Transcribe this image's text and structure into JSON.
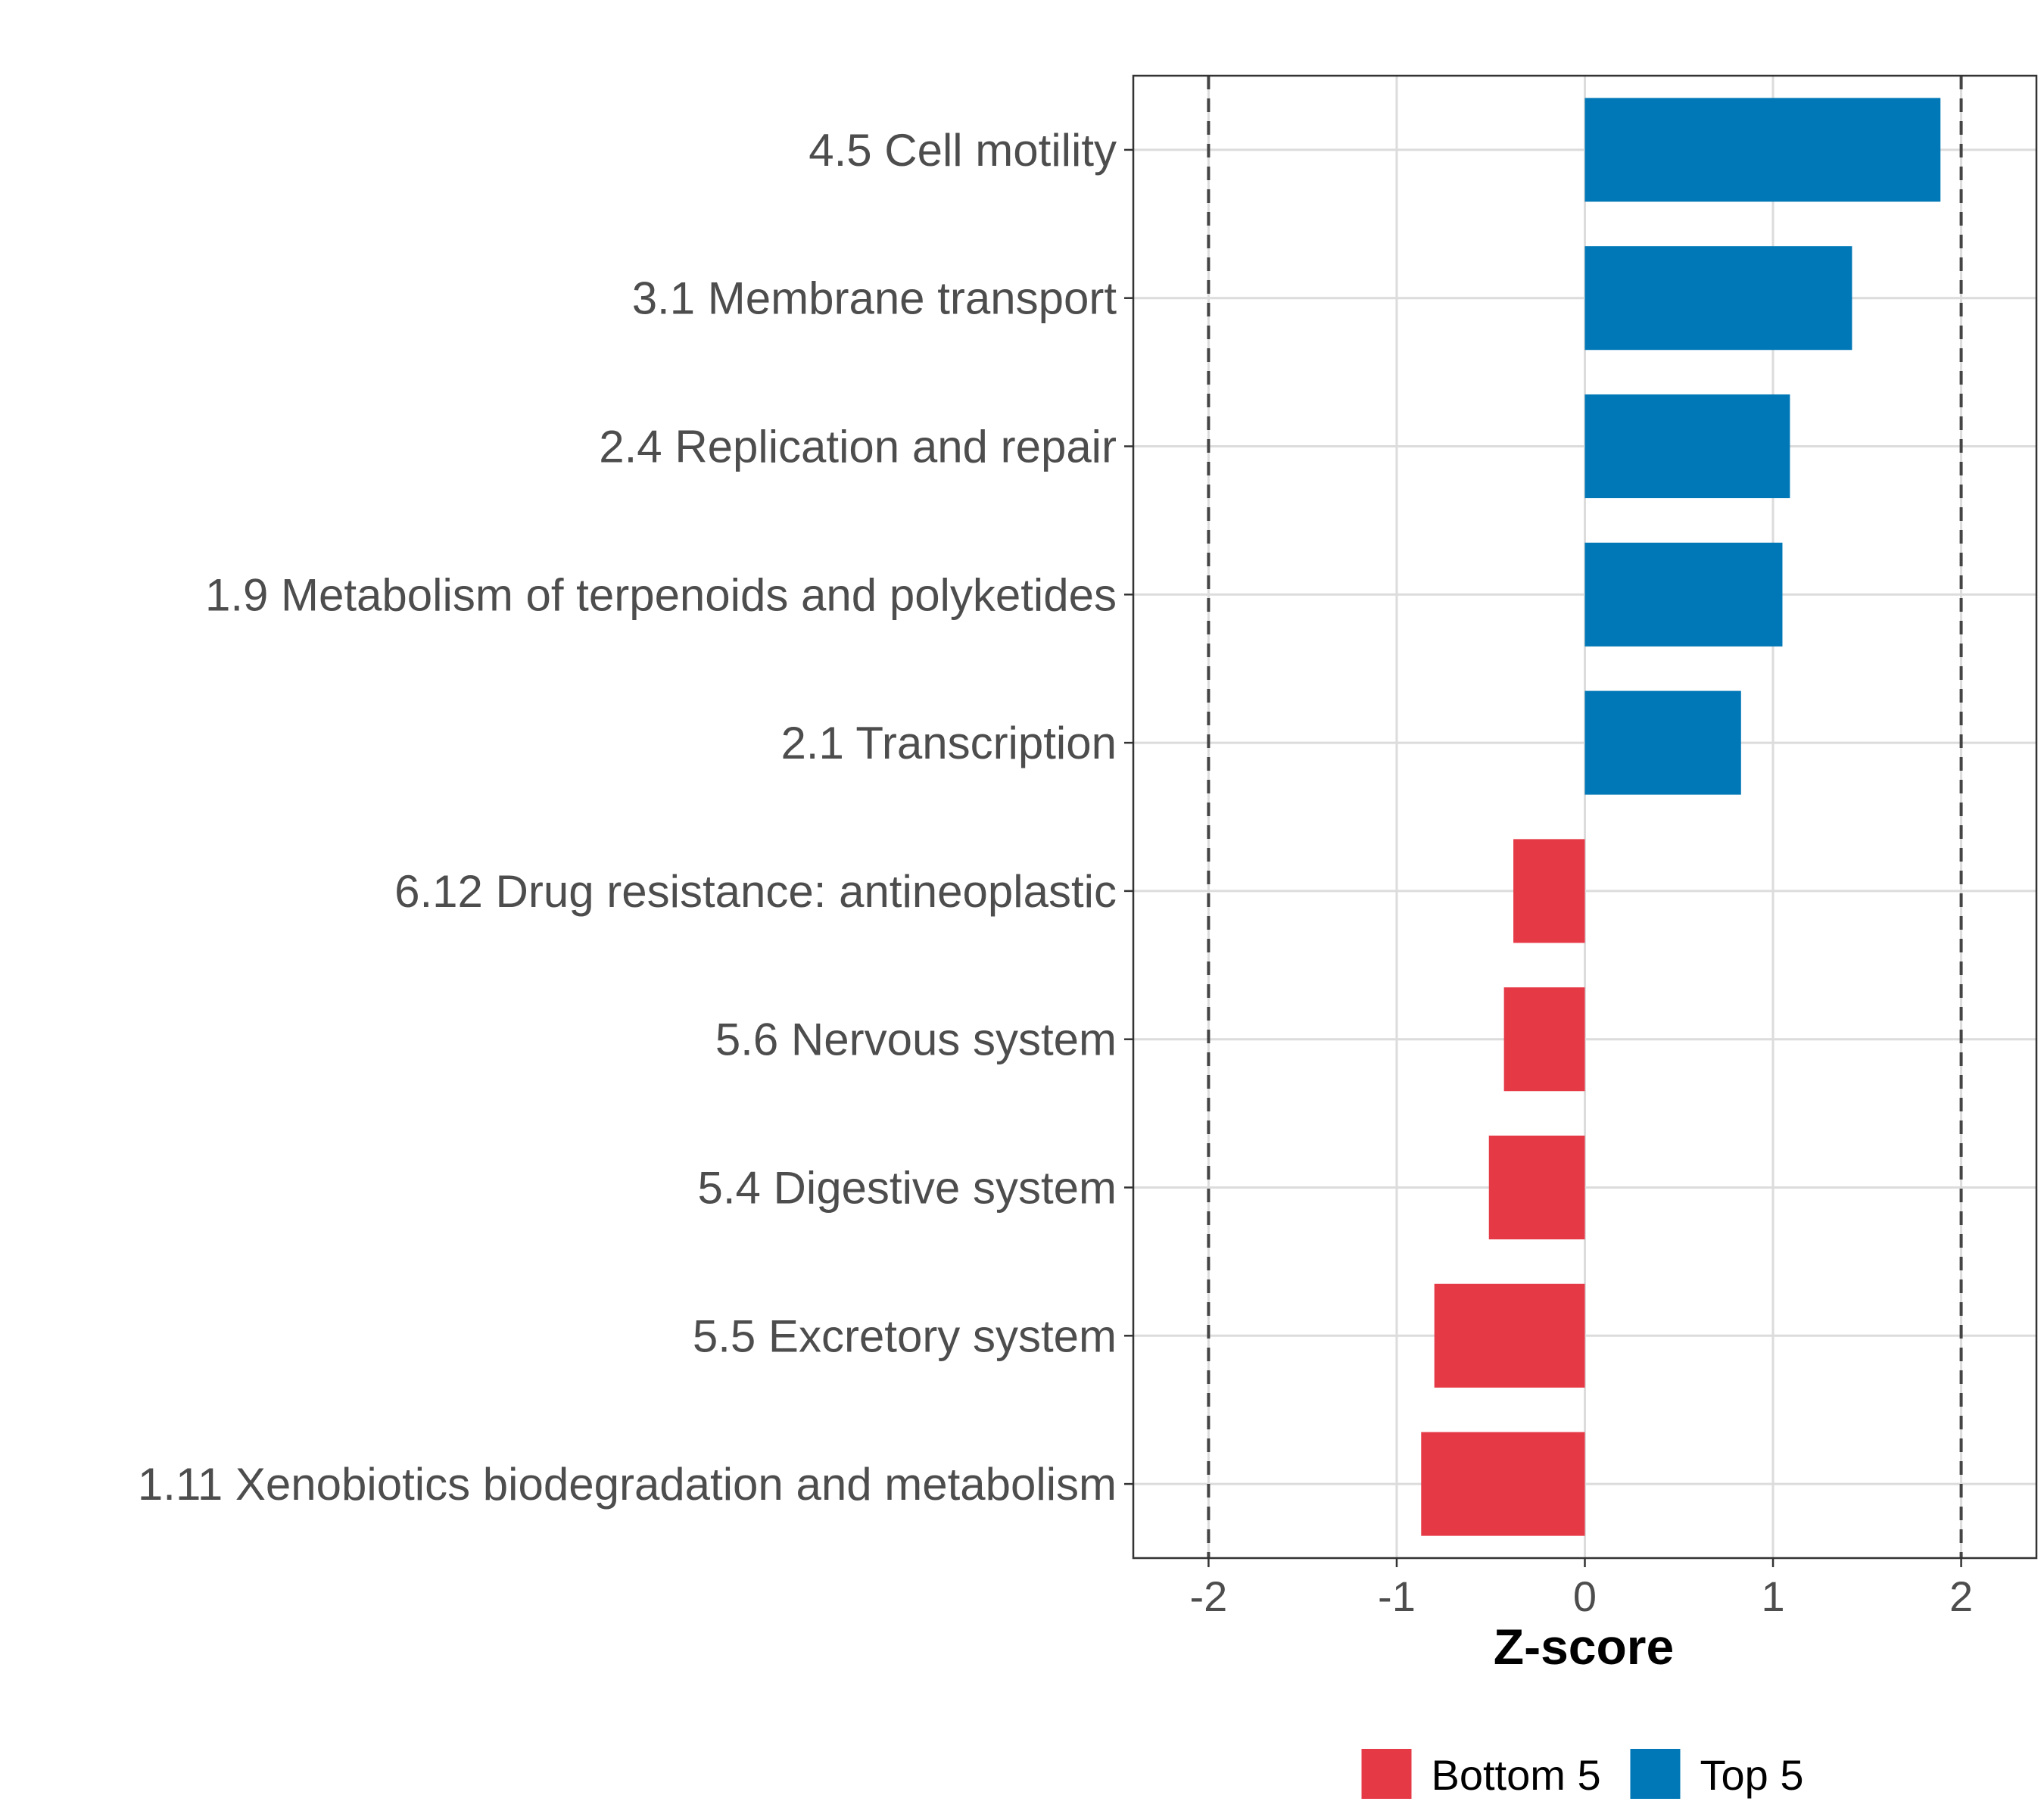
{
  "chart_data": {
    "type": "bar",
    "orientation": "horizontal",
    "xlabel": "Z-score",
    "xlim": [
      -2.4,
      2.4
    ],
    "xticks": [
      -2,
      -1,
      0,
      1,
      2
    ],
    "xtick_labels": [
      "-2",
      "-1",
      "0",
      "1",
      "2"
    ],
    "reference_lines": [
      -2,
      2
    ],
    "grid": true,
    "legend_position": "bottom",
    "categories": [
      "4.5 Cell motility",
      "3.1 Membrane transport",
      "2.4 Replication and repair",
      "1.9 Metabolism of terpenoids and polyketides",
      "2.1 Transcription",
      "6.12 Drug resistance: antineoplastic",
      "5.6 Nervous system",
      "5.4 Digestive system",
      "5.5 Excretory system",
      "1.11 Xenobiotics biodegradation and metabolism"
    ],
    "values": [
      1.89,
      1.42,
      1.09,
      1.05,
      0.83,
      -0.38,
      -0.43,
      -0.51,
      -0.8,
      -0.87
    ],
    "groups": [
      "Top 5",
      "Top 5",
      "Top 5",
      "Top 5",
      "Top 5",
      "Bottom 5",
      "Bottom 5",
      "Bottom 5",
      "Bottom 5",
      "Bottom 5"
    ],
    "legend": [
      {
        "name": "Bottom 5",
        "color": "#E63946"
      },
      {
        "name": "Top 5",
        "color": "#0077B6"
      }
    ]
  }
}
